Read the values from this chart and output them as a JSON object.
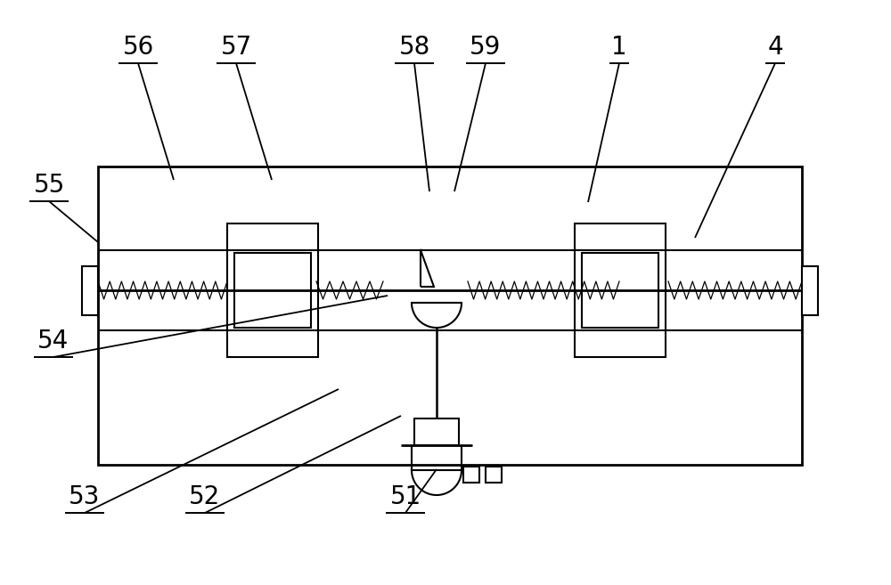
{
  "bg_color": "#ffffff",
  "line_color": "#000000",
  "lw": 1.5,
  "tlw": 2.0,
  "fs": 20
}
